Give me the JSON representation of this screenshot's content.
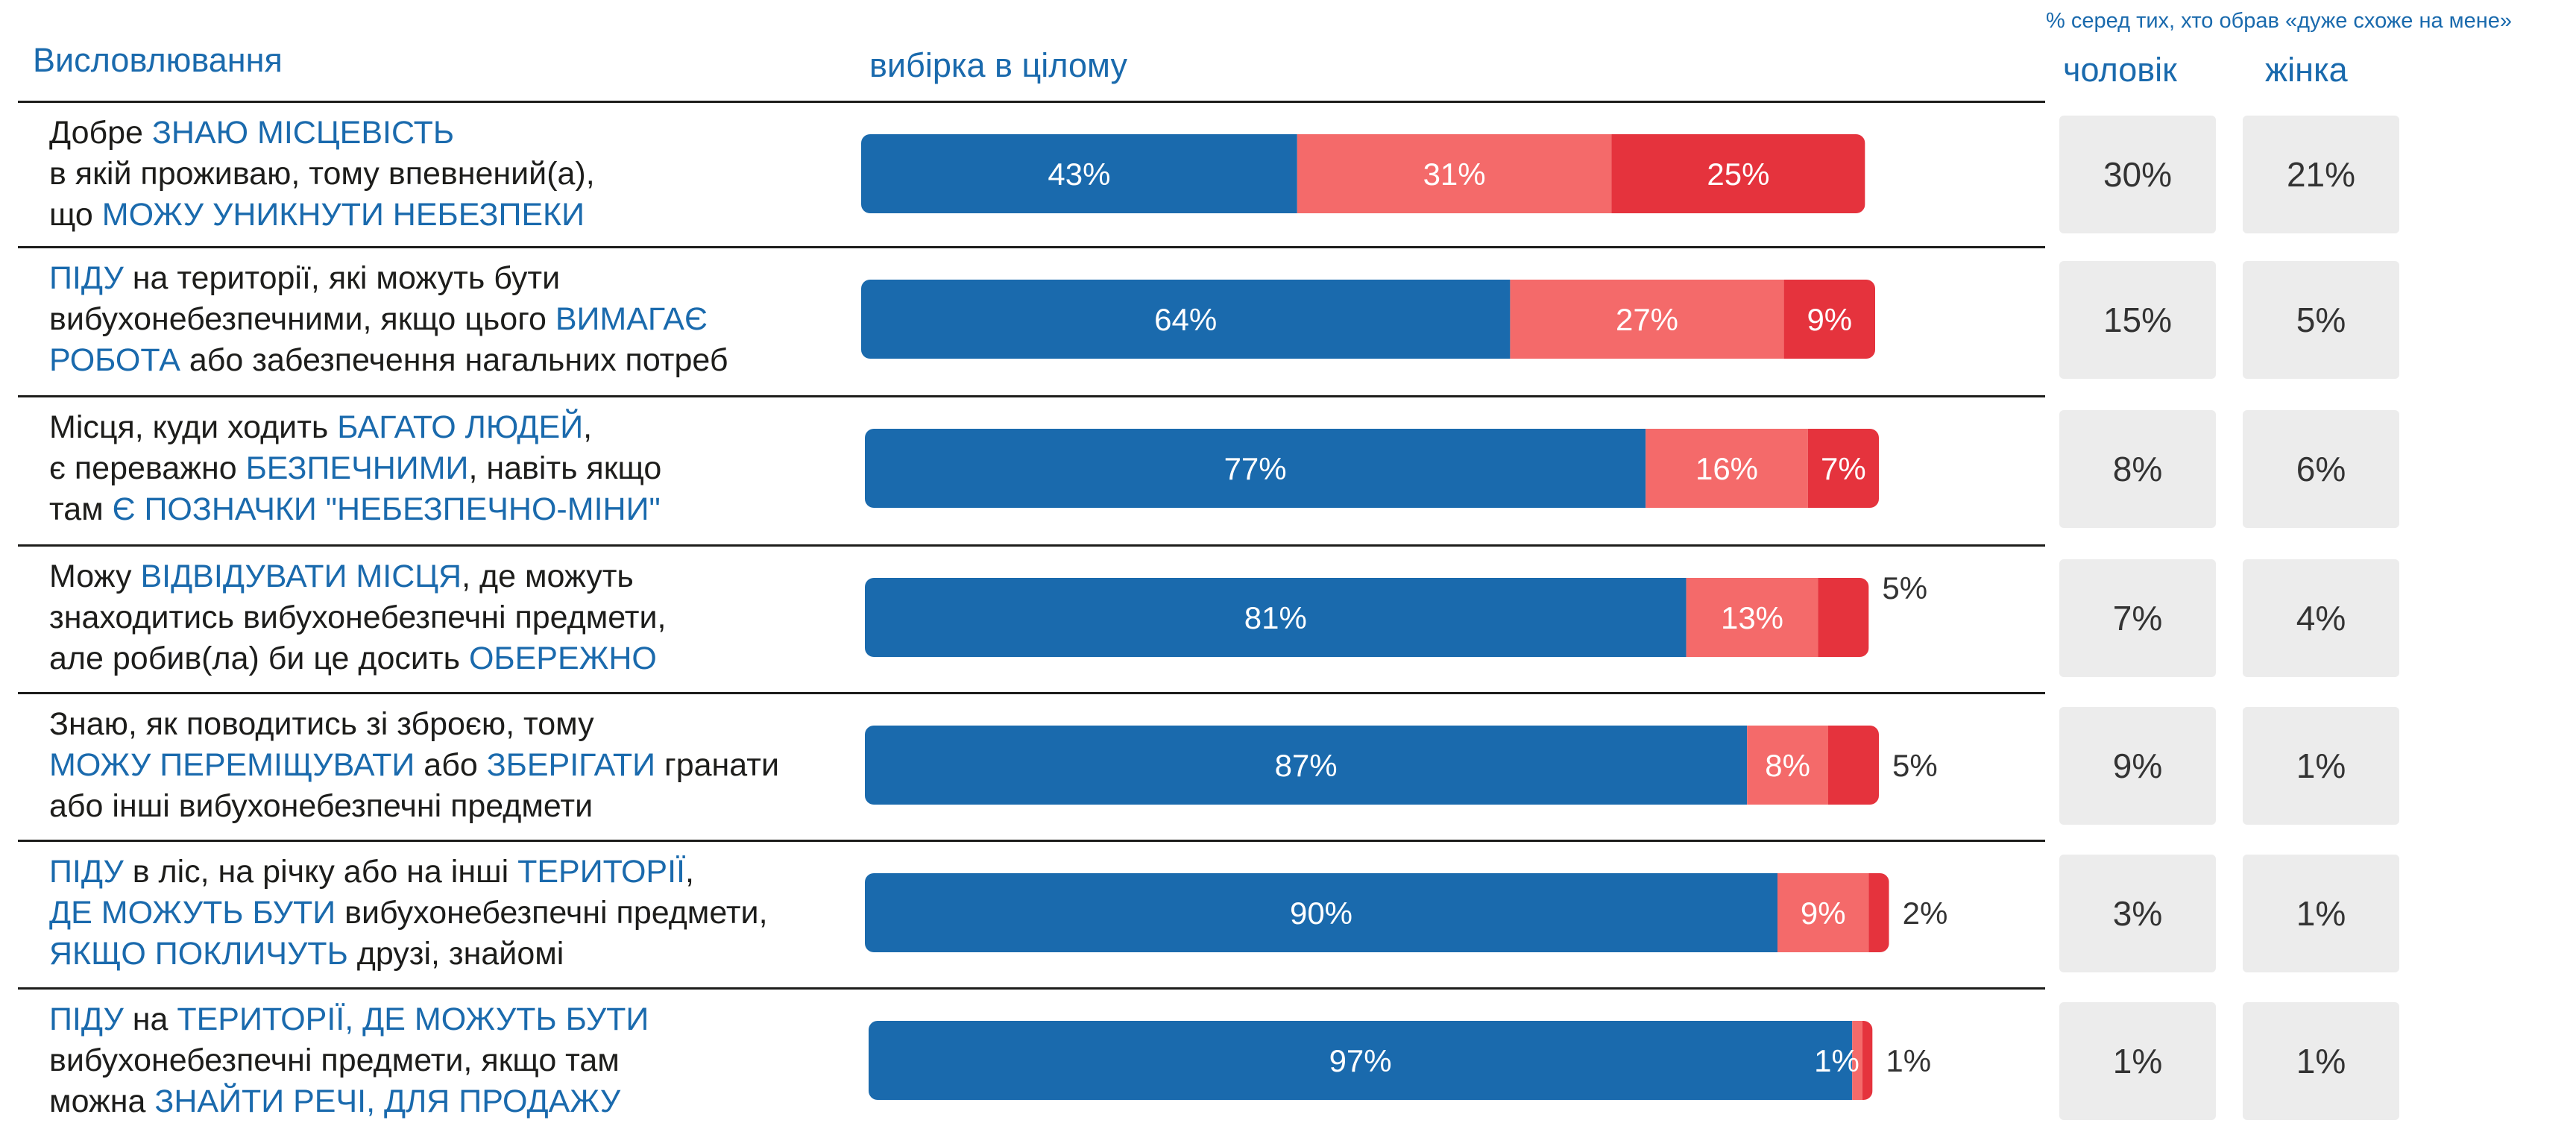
{
  "headers": {
    "statements": "Висловлювання",
    "total": "вибірка в цілому",
    "gender_note": "% серед тих, хто обрав «дуже схоже на мене»",
    "men": "чоловік",
    "women": "жінка"
  },
  "colors": {
    "blue": "#1a6aad",
    "light_red": "#f46a6a",
    "red": "#e5333d",
    "gray_box": "#ececec"
  },
  "rows": [
    {
      "text": [
        [
          "Добре ",
          false
        ],
        [
          "ЗНАЮ МІСЦЕВІСТЬ",
          true
        ],
        [
          "\nв якій проживаю, тому впевнений(а),\nщо ",
          false
        ],
        [
          "МОЖУ УНИКНУТИ НЕБЕЗПЕКИ",
          true
        ]
      ],
      "men": "30%",
      "women": "21%"
    },
    {
      "text": [
        [
          "ПІДУ",
          true
        ],
        [
          " на території, які можуть бути\nвибухонебезпечними, якщо цього ",
          false
        ],
        [
          "ВИМАГАЄ\nРОБОТА",
          true
        ],
        [
          " або забезпечення нагальних потреб",
          false
        ]
      ],
      "men": "15%",
      "women": "5%"
    },
    {
      "text": [
        [
          "Місця, куди ходить ",
          false
        ],
        [
          "БАГАТО ЛЮДЕЙ",
          true
        ],
        [
          ",\nє переважно ",
          false
        ],
        [
          "БЕЗПЕЧНИМИ",
          true
        ],
        [
          ", навіть якщо\nтам ",
          false
        ],
        [
          "Є ПОЗНАЧКИ \"НЕБЕЗПЕЧНО-МІНИ\"",
          true
        ]
      ],
      "men": "8%",
      "women": "6%"
    },
    {
      "text": [
        [
          "Можу ",
          false
        ],
        [
          "ВІДВІДУВАТИ МІСЦЯ",
          true
        ],
        [
          ", де можуть\nзнаходитись вибухонебезпечні  предмети,\nале робив(ла) би це досить ",
          false
        ],
        [
          "ОБЕРЕЖНО",
          true
        ]
      ],
      "men": "7%",
      "women": "4%"
    },
    {
      "text": [
        [
          "Знаю, як поводитись зі зброєю, тому\n",
          false
        ],
        [
          "МОЖУ ПЕРЕМІЩУВАТИ",
          true
        ],
        [
          " або ",
          false
        ],
        [
          "ЗБЕРІГАТИ",
          true
        ],
        [
          " гранати\nабо інші вибухонебезпечні  предмети",
          false
        ]
      ],
      "men": "9%",
      "women": "1%"
    },
    {
      "text": [
        [
          "ПІДУ",
          true
        ],
        [
          " в ліс, на річку або на інші ",
          false
        ],
        [
          "ТЕРИТОРІЇ",
          true
        ],
        [
          ",\n",
          false
        ],
        [
          "ДЕ МОЖУТЬ БУТИ",
          true
        ],
        [
          " вибухонебезпечні предмети,\n",
          false
        ],
        [
          "ЯКЩО ПОКЛИЧУТЬ",
          true
        ],
        [
          " друзі, знайомі",
          false
        ]
      ],
      "men": "3%",
      "women": "1%"
    },
    {
      "text": [
        [
          "ПІДУ",
          true
        ],
        [
          " на ",
          false
        ],
        [
          "ТЕРИТОРІЇ, ДЕ МОЖУТЬ БУТИ",
          true
        ],
        [
          "\nвибухонебезпечні  предмети, якщо там\nможна ",
          false
        ],
        [
          "ЗНАЙТИ РЕЧІ, ДЛЯ ПРОДАЖУ",
          true
        ]
      ],
      "men": "1%",
      "women": "1%"
    }
  ],
  "chart_data": {
    "type": "bar",
    "stacked": true,
    "orientation": "horizontal",
    "categories": [
      "Добре ЗНАЮ МІСЦЕВІСТЬ в якій проживаю, тому впевнений(а), що МОЖУ УНИКНУТИ НЕБЕЗПЕКИ",
      "ПІДУ на території, які можуть бути вибухонебезпечними, якщо цього ВИМАГАЄ РОБОТА або забезпечення нагальних потреб",
      "Місця, куди ходить БАГАТО ЛЮДЕЙ, є переважно БЕЗПЕЧНИМИ, навіть якщо там Є ПОЗНАЧКИ \"НЕБЕЗПЕЧНО-МІНИ\"",
      "Можу ВІДВІДУВАТИ МІСЦЯ, де можуть знаходитись вибухонебезпечні  предмети, але робив(ла) би це досить ОБЕРЕЖНО",
      "Знаю, як поводитись зі зброєю, тому МОЖУ ПЕРЕМІЩУВАТИ або ЗБЕРІГАТИ гранати або інші вибухонебезпечні  предмети",
      "ПІДУ в ліс, на річку або на інші ТЕРИТОРІЇ, ДЕ МОЖУТЬ БУТИ вибухонебезпечні предмети, ЯКЩО ПОКЛИЧУТЬ друзі, знайомі",
      "ПІДУ на ТЕРИТОРІЇ, ДЕ МОЖУТЬ БУТИ вибухонебезпечні  предмети, якщо там можна ЗНАЙТИ РЕЧІ, ДЛЯ ПРОДАЖУ"
    ],
    "series": [
      {
        "color": "#1a6aad",
        "values": [
          43,
          64,
          77,
          81,
          87,
          90,
          97
        ],
        "labels": [
          "43%",
          "64%",
          "77%",
          "81%",
          "87%",
          "90%",
          "97%"
        ]
      },
      {
        "color": "#f46a6a",
        "values": [
          31,
          27,
          16,
          13,
          8,
          9,
          1
        ],
        "labels": [
          "31%",
          "27%",
          "16%",
          "13%",
          "8%",
          "9%",
          "1%"
        ]
      },
      {
        "color": "#e5333d",
        "values": [
          25,
          9,
          7,
          5,
          5,
          2,
          1
        ],
        "labels": [
          "25%",
          "9%",
          "7%",
          "5%",
          "5%",
          "2%",
          "1%"
        ]
      }
    ],
    "xlim": [
      0,
      100
    ],
    "legend": "none",
    "grid": false
  }
}
